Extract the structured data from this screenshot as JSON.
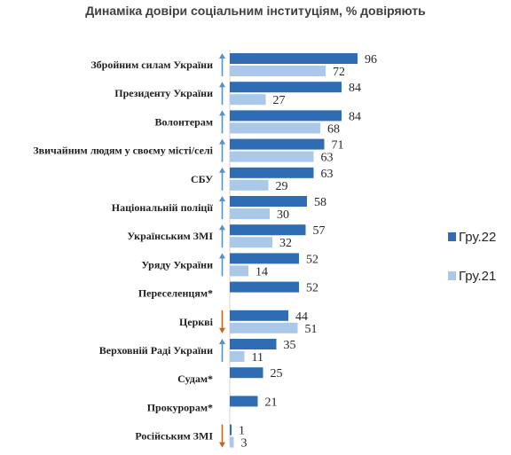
{
  "chart_data": {
    "type": "bar",
    "orientation": "horizontal",
    "title": "Динаміка довіри соціальним інституціям, % довіряють",
    "categories": [
      "Збройним силам України",
      "Президенту України",
      "Волонтерам",
      "Звичайним людям у своєму місті/селі",
      "СБУ",
      "Національній поліції",
      "Українським ЗМІ",
      "Уряду України",
      "Переселенцям*",
      "Церкві",
      "Верховній Раді України",
      "Судам*",
      "Прокурорам*",
      "Російським ЗМІ"
    ],
    "series": [
      {
        "name": "Гру.22",
        "color": "#2e6db4",
        "values": [
          96,
          84,
          84,
          71,
          63,
          58,
          57,
          52,
          52,
          44,
          35,
          25,
          21,
          1
        ]
      },
      {
        "name": "Гру.21",
        "color": "#a9c8ea",
        "values": [
          72,
          27,
          68,
          63,
          29,
          30,
          32,
          14,
          null,
          51,
          11,
          null,
          null,
          3
        ]
      }
    ],
    "trend": [
      "up",
      "up",
      "up",
      "up",
      "up",
      "up",
      "up",
      "up",
      "none",
      "down",
      "up",
      "none",
      "none",
      "down"
    ],
    "trend_colors": {
      "up": "#5b8fc7",
      "down": "#c5661f"
    },
    "xlim": [
      0,
      100
    ],
    "legend_position": "right"
  }
}
